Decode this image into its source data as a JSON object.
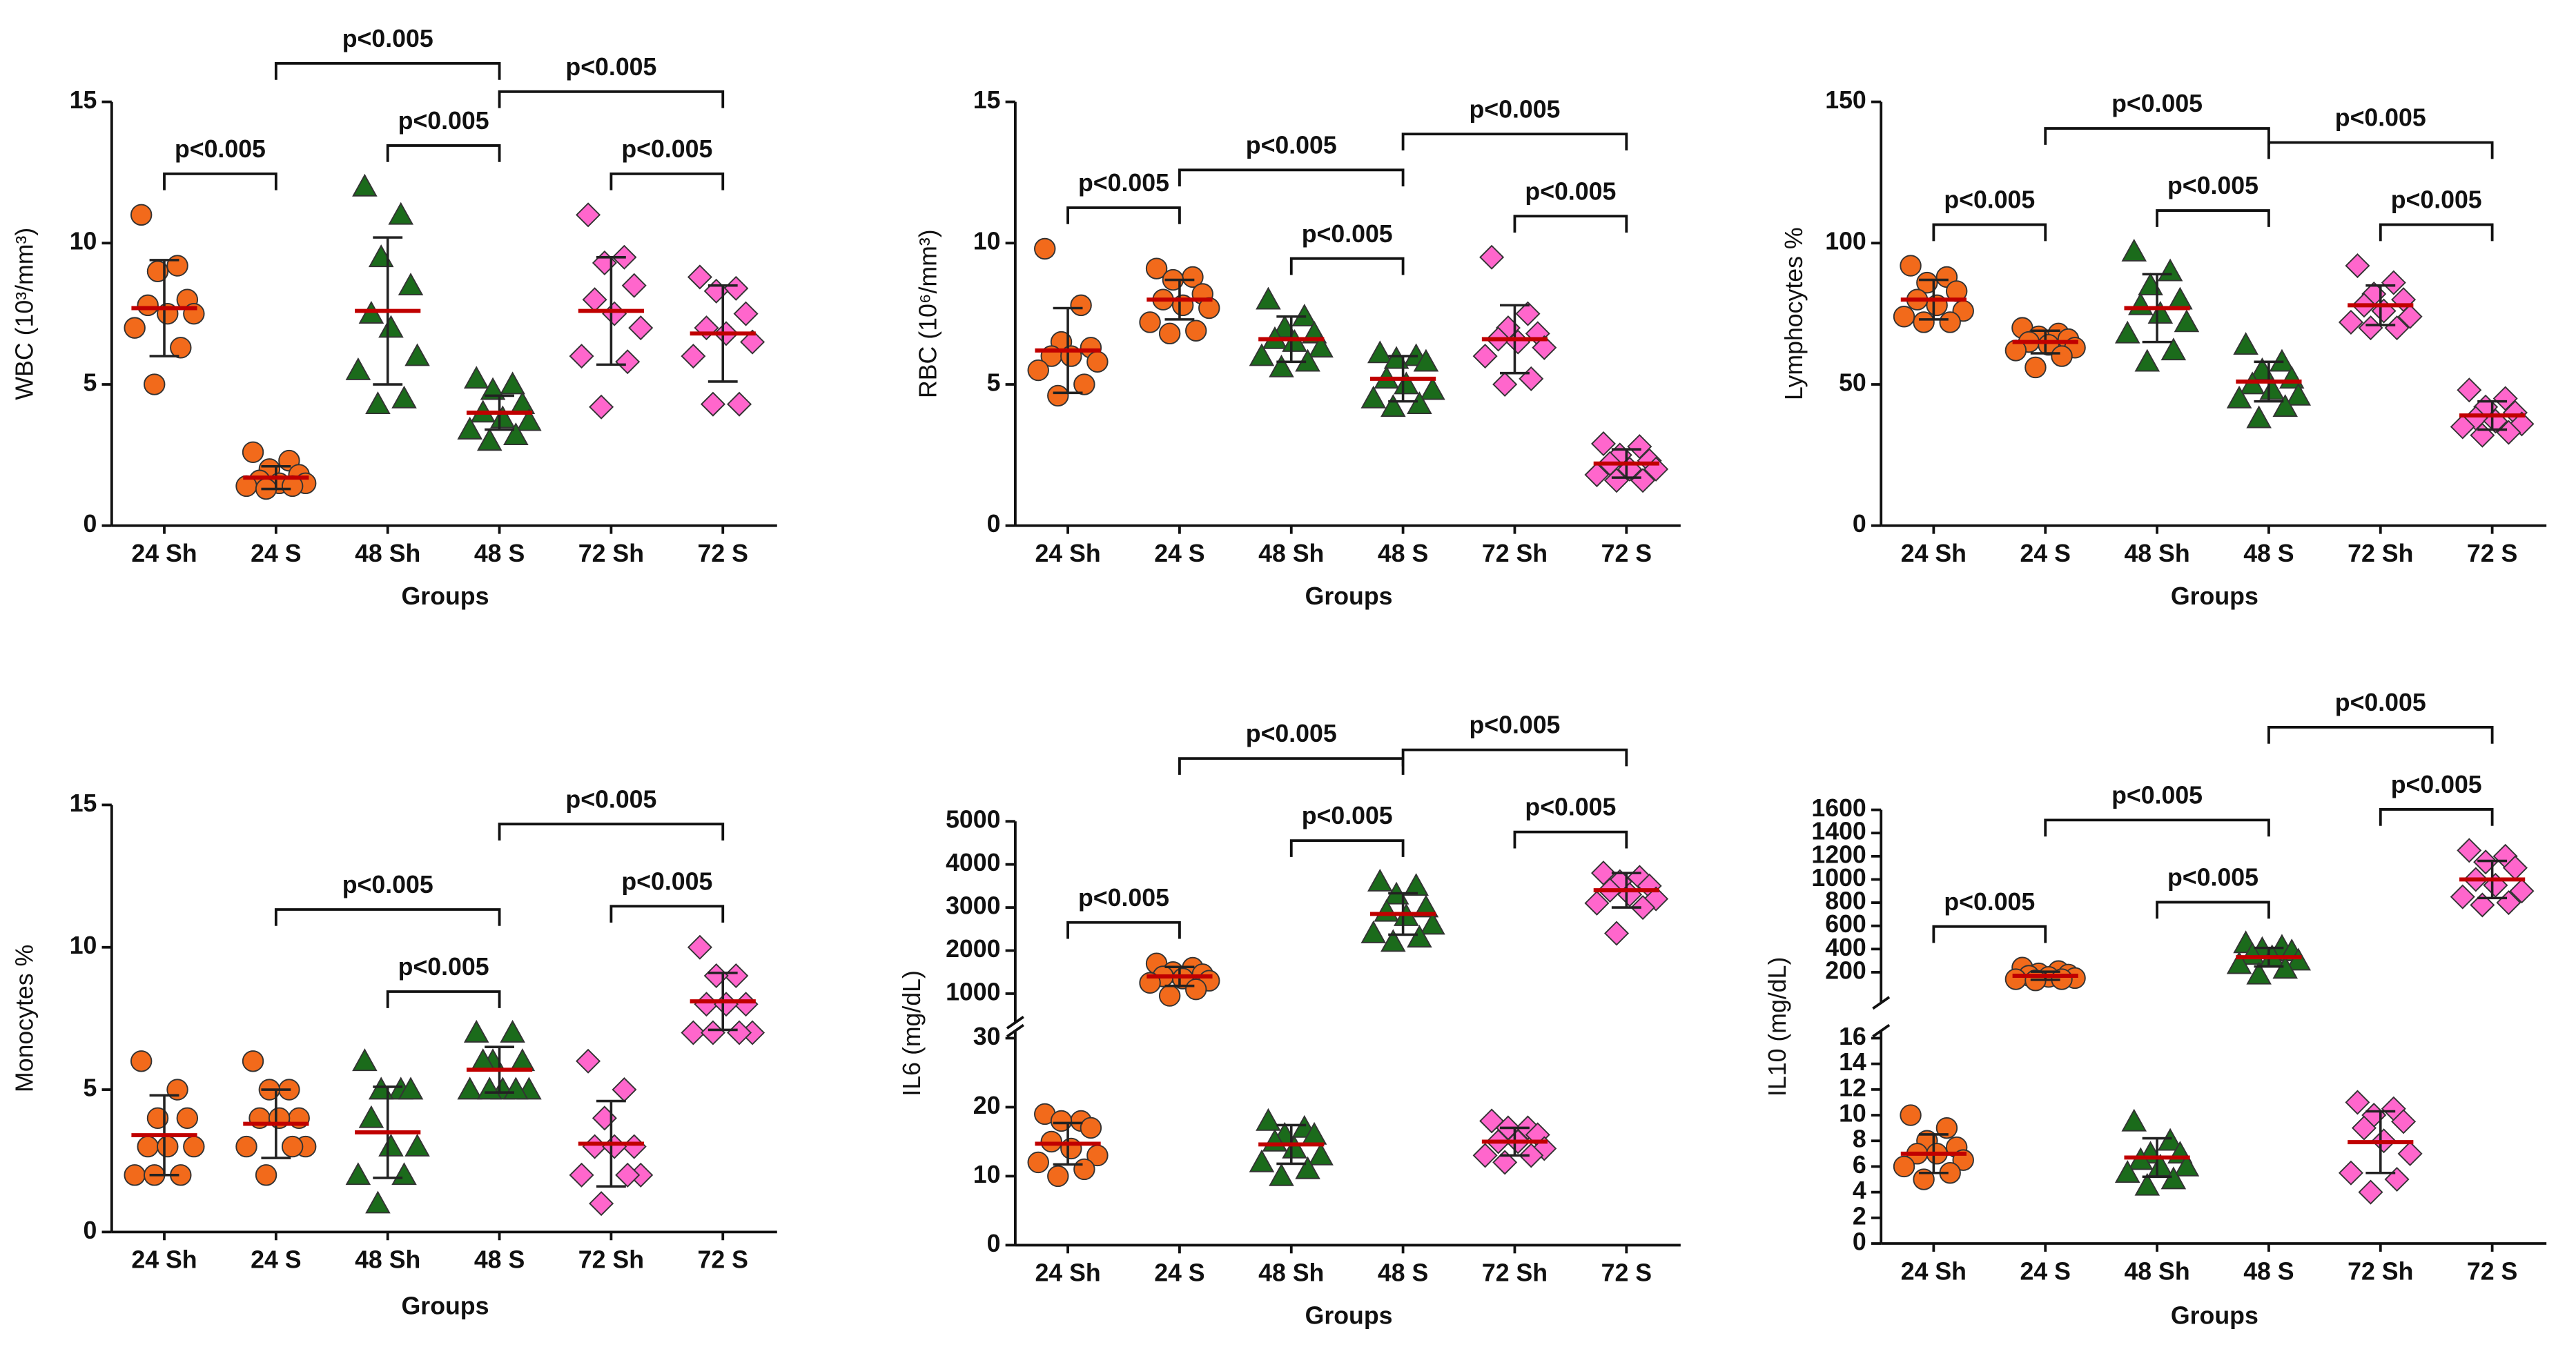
{
  "chart_data": [
    {
      "type": "dot",
      "y_label": "WBC (10³/mm³)",
      "x_label": "Groups",
      "ylim": [
        0,
        15
      ],
      "yticks": [
        0,
        5,
        10,
        15
      ],
      "mean_color": "#c00000",
      "series": [
        {
          "name": "24 Sh",
          "color": "#f26a1b",
          "marker": "circle",
          "values": [
            11,
            9.2,
            9,
            8,
            7.8,
            7.5,
            7.5,
            7,
            6.3,
            5
          ],
          "mean": 7.7,
          "sd": 1.7
        },
        {
          "name": "24 S",
          "color": "#f26a1b",
          "marker": "circle",
          "values": [
            2.6,
            2.3,
            2,
            1.8,
            1.6,
            1.5,
            1.5,
            1.4,
            1.4,
            1.3
          ],
          "mean": 1.7,
          "sd": 0.4
        },
        {
          "name": "48 Sh",
          "color": "#1b6b1b",
          "marker": "triangle",
          "values": [
            12,
            11,
            9.5,
            8.5,
            7.5,
            7,
            6,
            5.5,
            4.5,
            4.3
          ],
          "mean": 7.6,
          "sd": 2.6
        },
        {
          "name": "48 S",
          "color": "#1b6b1b",
          "marker": "triangle",
          "values": [
            5.2,
            5,
            4.8,
            4.3,
            4,
            3.8,
            3.7,
            3.4,
            3.2,
            3
          ],
          "mean": 4,
          "sd": 0.6
        },
        {
          "name": "72 Sh",
          "color": "#ff66cc",
          "marker": "diamond",
          "values": [
            11,
            9.5,
            9.3,
            8.5,
            8,
            7.5,
            7,
            6,
            5.8,
            4.2
          ],
          "mean": 7.6,
          "sd": 1.9
        },
        {
          "name": "72 S",
          "color": "#ff66cc",
          "marker": "diamond",
          "values": [
            8.8,
            8.4,
            8.3,
            7.5,
            7,
            6.8,
            6.5,
            6,
            4.3,
            4.3
          ],
          "mean": 6.8,
          "sd": 1.7
        }
      ],
      "brackets": [
        {
          "label": "p<0.005",
          "groups": [
            "24 Sh",
            "24 S"
          ]
        },
        {
          "label": "p<0.005",
          "groups": [
            "24 S",
            "48 S"
          ]
        },
        {
          "label": "p<0.005",
          "groups": [
            "48 Sh",
            "48 S"
          ]
        },
        {
          "label": "p<0.005",
          "groups": [
            "48 S",
            "72 S"
          ]
        },
        {
          "label": "p<0.005",
          "groups": [
            "72 Sh",
            "72 S"
          ]
        }
      ]
    },
    {
      "type": "dot",
      "y_label": "RBC (10⁶/mm³)",
      "x_label": "Groups",
      "ylim": [
        0,
        15
      ],
      "yticks": [
        0,
        5,
        10,
        15
      ],
      "mean_color": "#c00000",
      "series": [
        {
          "name": "24 Sh",
          "color": "#f26a1b",
          "marker": "circle",
          "values": [
            9.8,
            7.8,
            6.5,
            6.3,
            6,
            6,
            5.8,
            5.5,
            5,
            4.6
          ],
          "mean": 6.2,
          "sd": 1.5
        },
        {
          "name": "24 S",
          "color": "#f26a1b",
          "marker": "circle",
          "values": [
            9.1,
            8.8,
            8.7,
            8.2,
            8,
            7.8,
            7.7,
            7.2,
            6.9,
            6.8
          ],
          "mean": 8,
          "sd": 0.7
        },
        {
          "name": "48 Sh",
          "color": "#1b6b1b",
          "marker": "triangle",
          "values": [
            8,
            7.4,
            7,
            6.8,
            6.6,
            6.5,
            6.3,
            6,
            5.8,
            5.6
          ],
          "mean": 6.6,
          "sd": 0.8
        },
        {
          "name": "48 S",
          "color": "#1b6b1b",
          "marker": "triangle",
          "values": [
            6.1,
            6,
            5.9,
            5.8,
            5.2,
            5,
            4.8,
            4.5,
            4.3,
            4.2
          ],
          "mean": 5.2,
          "sd": 0.8
        },
        {
          "name": "72 Sh",
          "color": "#ff66cc",
          "marker": "diamond",
          "values": [
            9.5,
            7.5,
            7,
            6.8,
            6.6,
            6.5,
            6.3,
            6,
            5.2,
            5
          ],
          "mean": 6.6,
          "sd": 1.2
        },
        {
          "name": "72 S",
          "color": "#ff66cc",
          "marker": "diamond",
          "values": [
            2.9,
            2.8,
            2.5,
            2.3,
            2.2,
            2,
            2,
            1.8,
            1.6,
            1.6
          ],
          "mean": 2.2,
          "sd": 0.5
        }
      ],
      "brackets": [
        {
          "label": "p<0.005",
          "groups": [
            "24 Sh",
            "24 S"
          ]
        },
        {
          "label": "p<0.005",
          "groups": [
            "24 S",
            "48 S"
          ]
        },
        {
          "label": "p<0.005",
          "groups": [
            "48 Sh",
            "48 S"
          ]
        },
        {
          "label": "p<0.005",
          "groups": [
            "48 S",
            "72 S"
          ]
        },
        {
          "label": "p<0.005",
          "groups": [
            "72 Sh",
            "72 S"
          ]
        }
      ]
    },
    {
      "type": "dot",
      "y_label": "Lymphocytes %",
      "x_label": "Groups",
      "ylim": [
        0,
        150
      ],
      "yticks": [
        0,
        50,
        100,
        150
      ],
      "mean_color": "#c00000",
      "series": [
        {
          "name": "24 Sh",
          "color": "#f26a1b",
          "marker": "circle",
          "values": [
            92,
            88,
            86,
            83,
            80,
            78,
            76,
            74,
            72,
            72
          ],
          "mean": 80,
          "sd": 7
        },
        {
          "name": "24 S",
          "color": "#f26a1b",
          "marker": "circle",
          "values": [
            70,
            68,
            67,
            66,
            65,
            64,
            63,
            62,
            60,
            56
          ],
          "mean": 65,
          "sd": 4
        },
        {
          "name": "48 Sh",
          "color": "#1b6b1b",
          "marker": "triangle",
          "values": [
            97,
            90,
            85,
            80,
            78,
            75,
            72,
            68,
            62,
            58
          ],
          "mean": 77,
          "sd": 12
        },
        {
          "name": "48 S",
          "color": "#1b6b1b",
          "marker": "triangle",
          "values": [
            64,
            58,
            55,
            52,
            50,
            48,
            46,
            45,
            42,
            38
          ],
          "mean": 51,
          "sd": 7
        },
        {
          "name": "72 Sh",
          "color": "#ff66cc",
          "marker": "diamond",
          "values": [
            92,
            86,
            82,
            80,
            78,
            76,
            74,
            72,
            70,
            70
          ],
          "mean": 78,
          "sd": 7
        },
        {
          "name": "72 S",
          "color": "#ff66cc",
          "marker": "diamond",
          "values": [
            48,
            45,
            42,
            40,
            38,
            37,
            36,
            35,
            33,
            32
          ],
          "mean": 39,
          "sd": 5
        }
      ],
      "brackets": [
        {
          "label": "p<0.005",
          "groups": [
            "24 Sh",
            "24 S"
          ]
        },
        {
          "label": "p<0.005",
          "groups": [
            "24 S",
            "48 S"
          ]
        },
        {
          "label": "p<0.005",
          "groups": [
            "48 Sh",
            "48 S"
          ]
        },
        {
          "label": "p<0.005",
          "groups": [
            "48 S",
            "72 S"
          ]
        },
        {
          "label": "p<0.005",
          "groups": [
            "72 Sh",
            "72 S"
          ]
        }
      ]
    },
    {
      "type": "dot",
      "y_label": "Monocytes %",
      "x_label": "Groups",
      "ylim": [
        0,
        15
      ],
      "yticks": [
        0,
        5,
        10,
        15
      ],
      "mean_color": "#c00000",
      "series": [
        {
          "name": "24 Sh",
          "color": "#f26a1b",
          "marker": "circle",
          "values": [
            6,
            5,
            4,
            4,
            3,
            3,
            3,
            2,
            2,
            2
          ],
          "mean": 3.4,
          "sd": 1.4
        },
        {
          "name": "24 S",
          "color": "#f26a1b",
          "marker": "circle",
          "values": [
            6,
            5,
            5,
            4,
            4,
            4,
            3,
            3,
            3,
            2
          ],
          "mean": 3.8,
          "sd": 1.2
        },
        {
          "name": "48 Sh",
          "color": "#1b6b1b",
          "marker": "triangle",
          "values": [
            6,
            5,
            5,
            5,
            4,
            3,
            3,
            2,
            2,
            1
          ],
          "mean": 3.5,
          "sd": 1.6
        },
        {
          "name": "48 S",
          "color": "#1b6b1b",
          "marker": "triangle",
          "values": [
            7,
            7,
            6,
            6,
            6,
            5,
            5,
            5,
            5,
            5
          ],
          "mean": 5.7,
          "sd": 0.8
        },
        {
          "name": "72 Sh",
          "color": "#ff66cc",
          "marker": "diamond",
          "values": [
            6,
            5,
            4,
            3,
            3,
            3,
            2,
            2,
            2,
            1
          ],
          "mean": 3.1,
          "sd": 1.5
        },
        {
          "name": "72 S",
          "color": "#ff66cc",
          "marker": "diamond",
          "values": [
            10,
            9,
            9,
            8,
            8,
            8,
            7,
            7,
            7,
            7
          ],
          "mean": 8.1,
          "sd": 1
        }
      ],
      "brackets": [
        {
          "label": "p<0.005",
          "groups": [
            "24 S",
            "48 S"
          ]
        },
        {
          "label": "p<0.005",
          "groups": [
            "48 Sh",
            "48 S"
          ]
        },
        {
          "label": "p<0.005",
          "groups": [
            "48 S",
            "72 S"
          ]
        },
        {
          "label": "p<0.005",
          "groups": [
            "72 Sh",
            "72 S"
          ]
        }
      ]
    },
    {
      "type": "dot",
      "y_label": "IL6 (mg/dL)",
      "x_label": "Groups",
      "ylim": [
        0,
        30
      ],
      "yticks": [
        0,
        10,
        20,
        30
      ],
      "ylim_upper": [
        500,
        5000
      ],
      "yticks_upper": [
        1000,
        2000,
        3000,
        4000,
        5000
      ],
      "mean_color": "#c00000",
      "series": [
        {
          "name": "24 Sh",
          "color": "#f26a1b",
          "marker": "circle",
          "values": [
            19,
            18,
            18,
            17,
            15,
            14,
            13,
            12,
            11,
            10
          ],
          "mean": 14.7,
          "sd": 3
        },
        {
          "name": "24 S",
          "color": "#f26a1b",
          "marker": "circle",
          "values": [
            1700,
            1600,
            1500,
            1450,
            1400,
            1350,
            1300,
            1250,
            1100,
            950
          ],
          "mean": 1400,
          "sd": 220
        },
        {
          "name": "48 Sh",
          "color": "#1b6b1b",
          "marker": "triangle",
          "values": [
            18,
            17,
            16,
            16,
            15,
            14,
            13,
            12,
            11,
            10
          ],
          "mean": 14.6,
          "sd": 2.8
        },
        {
          "name": "48 S",
          "color": "#1b6b1b",
          "marker": "triangle",
          "values": [
            3600,
            3500,
            3300,
            3000,
            2900,
            2800,
            2600,
            2400,
            2300,
            2200
          ],
          "mean": 2850,
          "sd": 480
        },
        {
          "name": "72 Sh",
          "color": "#ff66cc",
          "marker": "diamond",
          "values": [
            18,
            17,
            17,
            16,
            15,
            15,
            14,
            13,
            13,
            12
          ],
          "mean": 15,
          "sd": 2
        },
        {
          "name": "72 S",
          "color": "#ff66cc",
          "marker": "diamond",
          "values": [
            3800,
            3700,
            3600,
            3500,
            3400,
            3300,
            3200,
            3100,
            3000,
            2400
          ],
          "mean": 3400,
          "sd": 400
        }
      ],
      "brackets": [
        {
          "label": "p<0.005",
          "groups": [
            "24 Sh",
            "24 S"
          ]
        },
        {
          "label": "p<0.005",
          "groups": [
            "24 S",
            "48 S"
          ]
        },
        {
          "label": "p<0.005",
          "groups": [
            "48 Sh",
            "48 S"
          ]
        },
        {
          "label": "p<0.005",
          "groups": [
            "48 S",
            "72 S"
          ]
        },
        {
          "label": "p<0.005",
          "groups": [
            "72 Sh",
            "72 S"
          ]
        }
      ]
    },
    {
      "type": "dot",
      "y_label": "IL10 (mg/dL)",
      "x_label": "Groups",
      "ylim": [
        0,
        16
      ],
      "yticks": [
        0,
        2,
        4,
        6,
        8,
        10,
        12,
        14,
        16
      ],
      "ylim_upper": [
        0,
        1600
      ],
      "yticks_upper": [
        200,
        400,
        600,
        800,
        1000,
        1200,
        1400,
        1600
      ],
      "mean_color": "#c00000",
      "series": [
        {
          "name": "24 Sh",
          "color": "#f26a1b",
          "marker": "circle",
          "values": [
            10,
            9,
            8,
            7.5,
            7,
            7,
            6.5,
            6,
            5.5,
            5
          ],
          "mean": 7,
          "sd": 1.5
        },
        {
          "name": "24 S",
          "color": "#f26a1b",
          "marker": "circle",
          "values": [
            240,
            210,
            190,
            180,
            170,
            160,
            150,
            140,
            140,
            130
          ],
          "mean": 170,
          "sd": 35
        },
        {
          "name": "48 Sh",
          "color": "#1b6b1b",
          "marker": "triangle",
          "values": [
            9.5,
            8,
            7,
            7,
            6.5,
            6,
            6,
            5.5,
            5,
            4.5
          ],
          "mean": 6.7,
          "sd": 1.5
        },
        {
          "name": "48 S",
          "color": "#1b6b1b",
          "marker": "triangle",
          "values": [
            450,
            420,
            400,
            380,
            350,
            330,
            300,
            270,
            230,
            180
          ],
          "mean": 330,
          "sd": 80
        },
        {
          "name": "72 Sh",
          "color": "#ff66cc",
          "marker": "diamond",
          "values": [
            11,
            10.5,
            10,
            9.5,
            9,
            8,
            7,
            5.5,
            5,
            4
          ],
          "mean": 7.9,
          "sd": 2.4
        },
        {
          "name": "72 S",
          "color": "#ff66cc",
          "marker": "diamond",
          "values": [
            1250,
            1200,
            1150,
            1100,
            1000,
            950,
            900,
            850,
            800,
            780
          ],
          "mean": 1000,
          "sd": 160
        }
      ],
      "brackets": [
        {
          "label": "p<0.005",
          "groups": [
            "24 Sh",
            "24 S"
          ]
        },
        {
          "label": "p<0.005",
          "groups": [
            "24 S",
            "48 S"
          ]
        },
        {
          "label": "p<0.005",
          "groups": [
            "48 Sh",
            "48 S"
          ]
        },
        {
          "label": "p<0.005",
          "groups": [
            "48 S",
            "72 S"
          ]
        },
        {
          "label": "p<0.005",
          "groups": [
            "72 Sh",
            "72 S"
          ]
        }
      ]
    }
  ]
}
